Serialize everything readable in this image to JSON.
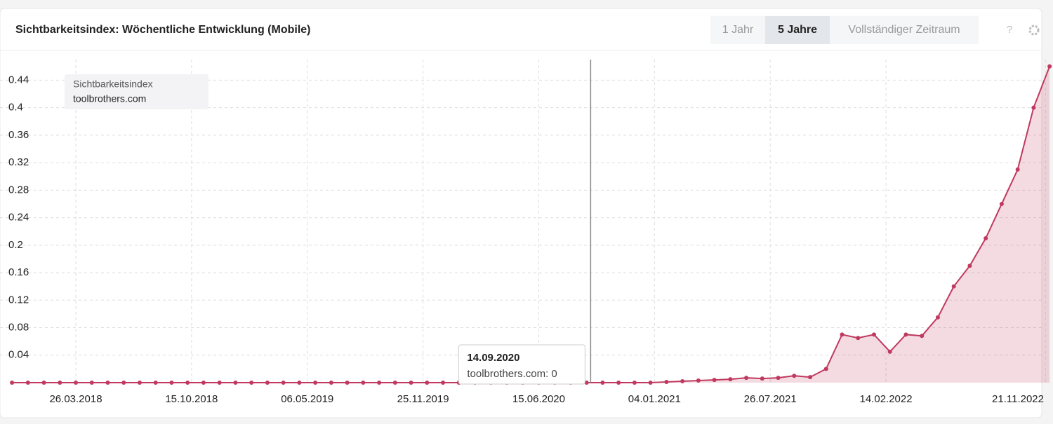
{
  "chart_data": {
    "type": "line",
    "title": "Sichtbarkeitsindex: Wöchentliche Entwicklung (Mobile)",
    "buttons": [
      "1 Jahr",
      "5 Jahre",
      "Vollständiger Zeitraum"
    ],
    "active_button": 1,
    "legend_title": "Sichtbarkeitsindex",
    "x": [
      "04.12.2017",
      "01.01.2018",
      "29.01.2018",
      "26.02.2018",
      "26.03.2018",
      "23.04.2018",
      "21.05.2018",
      "18.06.2018",
      "16.07.2018",
      "13.08.2018",
      "10.09.2018",
      "08.10.2018",
      "05.11.2018",
      "03.12.2018",
      "31.12.2018",
      "28.01.2019",
      "25.02.2019",
      "25.03.2019",
      "22.04.2019",
      "20.05.2019",
      "17.06.2019",
      "15.07.2019",
      "12.08.2019",
      "09.09.2019",
      "07.10.2019",
      "04.11.2019",
      "02.12.2019",
      "30.12.2019",
      "27.01.2020",
      "24.02.2020",
      "23.03.2020",
      "20.04.2020",
      "18.05.2020",
      "15.06.2020",
      "13.07.2020",
      "10.08.2020",
      "07.09.2020",
      "05.10.2020",
      "02.11.2020",
      "30.11.2020",
      "28.12.2020",
      "25.01.2021",
      "22.02.2021",
      "22.03.2021",
      "19.04.2021",
      "17.05.2021",
      "14.06.2021",
      "12.07.2021",
      "09.08.2021",
      "06.09.2021",
      "04.10.2021",
      "01.11.2021",
      "29.11.2021",
      "27.12.2021",
      "24.01.2022",
      "21.02.2022",
      "21.03.2022",
      "18.04.2022",
      "16.05.2022",
      "13.06.2022",
      "11.07.2022",
      "08.08.2022",
      "05.09.2022",
      "03.10.2022",
      "31.10.2022",
      "28.11.2022"
    ],
    "series": [
      {
        "name": "toolbrothers.com",
        "color": "#c0395f",
        "values": [
          0,
          0,
          0,
          0,
          0,
          0,
          0,
          0,
          0,
          0,
          0,
          0,
          0,
          0,
          0,
          0,
          0,
          0,
          0,
          0,
          0,
          0,
          0,
          0,
          0,
          0,
          0,
          0,
          0,
          0,
          0,
          0,
          0,
          0,
          0,
          0,
          0,
          0,
          0,
          0,
          0,
          0.001,
          0.002,
          0.003,
          0.004,
          0.005,
          0.007,
          0.006,
          0.007,
          0.01,
          0.008,
          0.02,
          0.07,
          0.065,
          0.07,
          0.045,
          0.07,
          0.068,
          0.095,
          0.14,
          0.17,
          0.21,
          0.26,
          0.31,
          0.4,
          0.46
        ]
      }
    ],
    "xlim": [
      "13.11.2017",
      "04.12.2022"
    ],
    "xticks": [
      "26.03.2018",
      "15.10.2018",
      "06.05.2019",
      "25.11.2019",
      "15.06.2020",
      "04.01.2021",
      "26.07.2021",
      "14.02.2022",
      "21.11.2022"
    ],
    "ylim": [
      0,
      0.47
    ],
    "yticks": [
      0.04,
      0.08,
      0.12,
      0.16,
      0.2,
      0.24,
      0.28,
      0.32,
      0.36,
      0.4,
      0.44
    ],
    "grid": true,
    "tooltip": {
      "x": "14.09.2020",
      "series": "toolbrothers.com",
      "value": 0
    }
  }
}
